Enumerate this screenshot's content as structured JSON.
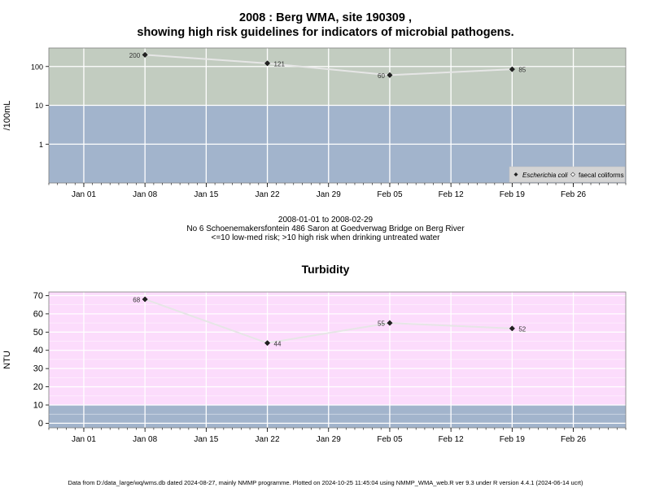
{
  "chart_data": [
    {
      "type": "line",
      "title_line1": "2008 : Berg WMA, site 190309 ,",
      "title_line2": "showing high risk guidelines for indicators of microbial pathogens.",
      "ylabel": "/100mL",
      "yscale": "log",
      "ylim": [
        0.1,
        300
      ],
      "yticks": [
        {
          "v": 1,
          "label": "1"
        },
        {
          "v": 10,
          "label": "10"
        },
        {
          "v": 100,
          "label": "100"
        }
      ],
      "xlim": [
        "2007-12-28",
        "2008-03-03"
      ],
      "xticks": [
        "Jan 01",
        "Jan 08",
        "Jan 15",
        "Jan 22",
        "Jan 29",
        "Feb 05",
        "Feb 12",
        "Feb 19",
        "Feb 26"
      ],
      "xtick_dates": [
        "2008-01-01",
        "2008-01-08",
        "2008-01-15",
        "2008-01-22",
        "2008-01-29",
        "2008-02-05",
        "2008-02-12",
        "2008-02-19",
        "2008-02-26"
      ],
      "bands": [
        {
          "from": 0.1,
          "to": 10,
          "color": "#a2b4cc",
          "meaning": "<=10 low-med risk"
        },
        {
          "from": 10,
          "to": 300,
          "color": "#c2ccc0",
          "meaning": ">10 high risk"
        }
      ],
      "series": [
        {
          "name": "Escherichia coli",
          "marker": "filled-diamond",
          "x": [
            "2008-01-08",
            "2008-01-22",
            "2008-02-05",
            "2008-02-19"
          ],
          "values": [
            200,
            121,
            60,
            85
          ],
          "labels": [
            "200",
            "121",
            "60",
            "85"
          ]
        },
        {
          "name": "faecal coliforms",
          "marker": "open-diamond",
          "x": [],
          "values": [],
          "labels": []
        }
      ],
      "legend_position": "bottom-right",
      "grid": true
    },
    {
      "type": "line",
      "title": "Turbidity",
      "ylabel": "NTU",
      "ylim": [
        -2.5,
        72
      ],
      "yticks": [
        0,
        10,
        20,
        30,
        40,
        50,
        60,
        70
      ],
      "xlim": [
        "2007-12-28",
        "2008-03-03"
      ],
      "xticks": [
        "Jan 01",
        "Jan 08",
        "Jan 15",
        "Jan 22",
        "Jan 29",
        "Feb 05",
        "Feb 12",
        "Feb 19",
        "Feb 26"
      ],
      "xtick_dates": [
        "2008-01-01",
        "2008-01-08",
        "2008-01-15",
        "2008-01-22",
        "2008-01-29",
        "2008-02-05",
        "2008-02-12",
        "2008-02-19",
        "2008-02-26"
      ],
      "bands": [
        {
          "from": -2.5,
          "to": 10,
          "color": "#a2b4cc"
        },
        {
          "from": 10,
          "to": 72,
          "color": "#fcdcfc"
        }
      ],
      "series": [
        {
          "name": "Turbidity",
          "x": [
            "2008-01-08",
            "2008-01-22",
            "2008-02-05",
            "2008-02-19"
          ],
          "values": [
            68,
            44,
            55,
            52
          ],
          "labels": [
            "68",
            "44",
            "55",
            "52"
          ]
        }
      ],
      "grid": true
    }
  ],
  "period_text": "2008-01-01 to 2008-02-29",
  "site_text": "No 6 Schoenemakersfontein 486 Saron at Goedverwag Bridge on Berg River",
  "risk_text": "<=10 low-med risk; >10 high risk when drinking untreated water",
  "footer_text": "Data from D:/data_large/wq/wms.db dated 2024-08-27, mainly NMMP programme. Plotted on 2024-10-25 11:45:04 using NMMP_WMA_web.R ver 9.3 under R version 4.4.1 (2024-06-14 ucrt)"
}
